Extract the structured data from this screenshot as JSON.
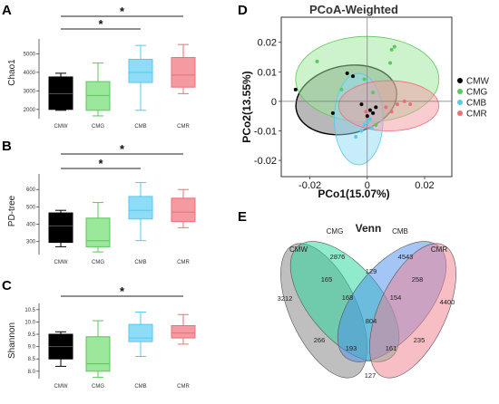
{
  "colors": {
    "CMW": "#000000",
    "CMG": "#5ac85a",
    "CMB": "#57c8f0",
    "CMR": "#ee6e78",
    "CMW_fill": "#000000",
    "CMG_fill": "#9be79b",
    "CMB_fill": "#8fdcf7",
    "CMR_fill": "#f49aa0"
  },
  "chart_data": [
    {
      "type": "box",
      "panel_label": "A",
      "title": "",
      "xlabel": "",
      "ylabel": "Chao1",
      "categories": [
        "CMW",
        "CMG",
        "CMB",
        "CMR"
      ],
      "ylim": [
        1500,
        5800
      ],
      "yticks": [
        "2000",
        "3000",
        "4000",
        "5000"
      ],
      "boxes": [
        {
          "name": "CMW",
          "min": 1950,
          "q1": 2000,
          "median": 2850,
          "q3": 3750,
          "max": 3950
        },
        {
          "name": "CMG",
          "min": 1650,
          "q1": 1950,
          "median": 2750,
          "q3": 3500,
          "max": 4500
        },
        {
          "name": "CMB",
          "min": 1950,
          "q1": 3450,
          "median": 4000,
          "q3": 4700,
          "max": 5450
        },
        {
          "name": "CMR",
          "min": 2850,
          "q1": 3200,
          "median": 3850,
          "q3": 4800,
          "max": 5500
        }
      ],
      "significance": [
        {
          "from": "CMW",
          "to": "CMR",
          "label": "*"
        },
        {
          "from": "CMW",
          "to": "CMB",
          "label": "*"
        }
      ]
    },
    {
      "type": "box",
      "panel_label": "B",
      "title": "",
      "xlabel": "",
      "ylabel": "PD-tree",
      "categories": [
        "CMW",
        "CMG",
        "CMB",
        "CMR"
      ],
      "ylim": [
        225,
        690
      ],
      "yticks": [
        "300",
        "400",
        "500",
        "600"
      ],
      "boxes": [
        {
          "name": "CMW",
          "min": 270,
          "q1": 295,
          "median": 390,
          "q3": 465,
          "max": 480
        },
        {
          "name": "CMG",
          "min": 240,
          "q1": 270,
          "median": 305,
          "q3": 435,
          "max": 525
        },
        {
          "name": "CMB",
          "min": 305,
          "q1": 430,
          "median": 480,
          "q3": 560,
          "max": 640
        },
        {
          "name": "CMR",
          "min": 380,
          "q1": 415,
          "median": 470,
          "q3": 550,
          "max": 600
        }
      ],
      "significance": [
        {
          "from": "CMW",
          "to": "CMR",
          "label": "*"
        },
        {
          "from": "CMW",
          "to": "CMB",
          "label": "*"
        }
      ]
    },
    {
      "type": "box",
      "panel_label": "C",
      "title": "",
      "xlabel": "",
      "ylabel": "Shannon",
      "categories": [
        "CMW",
        "CMG",
        "CMB",
        "CMR"
      ],
      "ylim": [
        7.7,
        10.75
      ],
      "yticks": [
        "8.0",
        "8.5",
        "9.0",
        "9.5",
        "10.0",
        "10.5"
      ],
      "boxes": [
        {
          "name": "CMW",
          "min": 8.2,
          "q1": 8.5,
          "median": 9.0,
          "q3": 9.5,
          "max": 9.6
        },
        {
          "name": "CMG",
          "min": 7.75,
          "q1": 8.0,
          "median": 8.3,
          "q3": 9.4,
          "max": 10.05
        },
        {
          "name": "CMB",
          "min": 8.6,
          "q1": 9.2,
          "median": 9.35,
          "q3": 9.9,
          "max": 10.4
        },
        {
          "name": "CMR",
          "min": 9.1,
          "q1": 9.35,
          "median": 9.55,
          "q3": 9.85,
          "max": 10.3
        }
      ],
      "significance": [
        {
          "from": "CMW",
          "to": "CMR",
          "label": "*"
        }
      ]
    },
    {
      "type": "scatter",
      "panel_label": "D",
      "title": "PCoA-Weighted",
      "xlabel": "PCo1(15.07%)",
      "ylabel": "PCo2(13.55%)",
      "xlim": [
        -0.03,
        0.0295
      ],
      "ylim": [
        -0.0255,
        0.0285
      ],
      "xticks": [
        -0.02,
        0.0,
        0.02
      ],
      "yticks": [
        -0.02,
        -0.01,
        0.0,
        0.01,
        0.02
      ],
      "xticklabels": [
        "-0.02",
        "0",
        "0.02"
      ],
      "yticklabels": [
        "-0.02",
        "-0.01",
        "0",
        "0.01",
        "0.02"
      ],
      "legend_position": "right",
      "series": [
        {
          "name": "CMW",
          "points": [
            [
              -0.025,
              0.004
            ],
            [
              -0.007,
              0.0095
            ],
            [
              -0.005,
              0.0085
            ],
            [
              -0.012,
              -0.004
            ],
            [
              0.0,
              -0.005
            ],
            [
              0.001,
              -0.003
            ],
            [
              -0.002,
              -0.001
            ],
            [
              0.003,
              -0.002
            ],
            [
              0.002,
              -0.004
            ]
          ],
          "ellipse": {
            "cx": -0.0073,
            "cy": 0.0005,
            "rx": 0.0178,
            "ry": 0.0115,
            "angle_deg": 12
          }
        },
        {
          "name": "CMG",
          "points": [
            [
              -0.0175,
              0.0135
            ],
            [
              0.0085,
              0.0175
            ],
            [
              0.0095,
              0.0185
            ],
            [
              0.008,
              0.013
            ],
            [
              -0.001,
              0.0075
            ],
            [
              0.002,
              0.003
            ],
            [
              -0.009,
              0.004
            ],
            [
              0.003,
              -0.008
            ]
          ],
          "ellipse": {
            "cx": 0.0,
            "cy": 0.0075,
            "rx": 0.025,
            "ry": 0.0145,
            "angle_deg": 0
          }
        },
        {
          "name": "CMB",
          "points": [
            [
              0.0,
              -0.007
            ],
            [
              0.0015,
              -0.009
            ],
            [
              -0.004,
              -0.012
            ],
            [
              -0.002,
              -0.01
            ],
            [
              0.001,
              -0.006
            ],
            [
              -0.001,
              -0.008
            ]
          ],
          "ellipse": {
            "cx": -0.003,
            "cy": -0.006,
            "rx": 0.0085,
            "ry": 0.0155,
            "angle_deg": 0
          }
        },
        {
          "name": "CMR",
          "points": [
            [
              0.0065,
              -0.002
            ],
            [
              0.0085,
              -0.0035
            ],
            [
              0.0105,
              -0.001
            ],
            [
              0.013,
              0.0
            ],
            [
              0.015,
              -0.001
            ],
            [
              -0.0005,
              -0.0035
            ]
          ],
          "ellipse": {
            "cx": 0.0075,
            "cy": -0.0015,
            "rx": 0.0175,
            "ry": 0.0085,
            "angle_deg": 0
          }
        }
      ]
    },
    {
      "type": "venn",
      "panel_label": "E",
      "title": "Venn",
      "sets": [
        "CMW",
        "CMG",
        "CMB",
        "CMR"
      ],
      "regions": [
        {
          "sets": [
            "CMW"
          ],
          "value": 3212
        },
        {
          "sets": [
            "CMG"
          ],
          "value": 2876
        },
        {
          "sets": [
            "CMB"
          ],
          "value": 4543
        },
        {
          "sets": [
            "CMR"
          ],
          "value": 4400
        },
        {
          "sets": [
            "CMW",
            "CMG"
          ],
          "value": 165
        },
        {
          "sets": [
            "CMG",
            "CMB"
          ],
          "value": 129
        },
        {
          "sets": [
            "CMB",
            "CMR"
          ],
          "value": 258
        },
        {
          "sets": [
            "CMW",
            "CMG",
            "CMB"
          ],
          "value": 168
        },
        {
          "sets": [
            "CMG",
            "CMB",
            "CMR"
          ],
          "value": 154
        },
        {
          "sets": [
            "CMW",
            "CMG",
            "CMB",
            "CMR"
          ],
          "value": 804
        },
        {
          "sets": [
            "CMW",
            "CMB"
          ],
          "value": 266
        },
        {
          "sets": [
            "CMG",
            "CMR"
          ],
          "value": 235
        },
        {
          "sets": [
            "CMW",
            "CMB",
            "CMR"
          ],
          "value": 193
        },
        {
          "sets": [
            "CMW",
            "CMG",
            "CMR"
          ],
          "value": 161
        },
        {
          "sets": [
            "CMW",
            "CMR"
          ],
          "value": 127
        }
      ]
    }
  ]
}
